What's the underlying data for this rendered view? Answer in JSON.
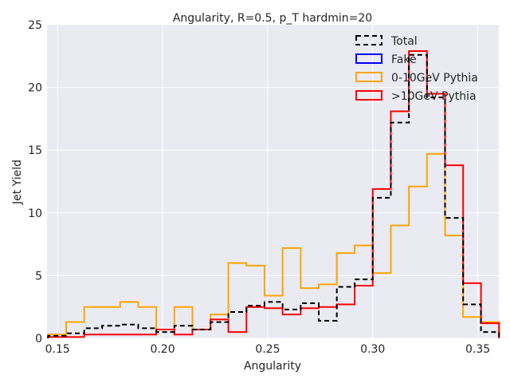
{
  "chart_data": {
    "type": "line",
    "title": "Angularity, R=0.5, p_T hardmin=20",
    "xlabel": "Angularity",
    "ylabel": "Jet Yield",
    "xlim": [
      0.145,
      0.36
    ],
    "ylim": [
      0,
      25
    ],
    "xticks": [
      0.15,
      0.2,
      0.25,
      0.3,
      0.35
    ],
    "xtick_labels": [
      "0.15",
      "0.20",
      "0.25",
      "0.30",
      "0.35"
    ],
    "yticks": [
      0,
      5,
      10,
      15,
      20,
      25
    ],
    "ytick_labels": [
      "0",
      "5",
      "10",
      "15",
      "20",
      "25"
    ],
    "grid": true,
    "legend_position": "top-right",
    "bin_edges": [
      0.1455,
      0.1541,
      0.1627,
      0.1712,
      0.1798,
      0.1884,
      0.197,
      0.2056,
      0.2142,
      0.2228,
      0.2313,
      0.2399,
      0.2485,
      0.2571,
      0.2657,
      0.2743,
      0.2829,
      0.2914,
      0.3,
      0.3086,
      0.3172,
      0.3258,
      0.3344,
      0.343,
      0.3515,
      0.3601
    ],
    "series": [
      {
        "name": "Total",
        "color": "#000000",
        "style": "dashed",
        "values": [
          0.2,
          0.4,
          0.8,
          1.0,
          1.1,
          0.8,
          0.5,
          1.0,
          0.7,
          1.3,
          2.1,
          2.6,
          2.9,
          2.3,
          2.8,
          1.4,
          4.1,
          4.7,
          11.2,
          17.2,
          22.6,
          19.2,
          9.6,
          2.7,
          0.5
        ]
      },
      {
        "name": "Fake",
        "color": "#0000ff",
        "style": "solid",
        "values": []
      },
      {
        "name": "0-10GeV Pythia",
        "color": "#ffa500",
        "style": "solid",
        "values": [
          0.3,
          1.3,
          2.5,
          2.5,
          2.9,
          2.5,
          0.7,
          2.5,
          0.7,
          1.9,
          6.0,
          5.8,
          3.4,
          7.2,
          4.0,
          4.3,
          6.8,
          7.4,
          5.2,
          9.0,
          12.1,
          14.7,
          8.2,
          1.7,
          1.3
        ]
      },
      {
        "name": ">10GeV Pythia",
        "color": "#ff0000",
        "style": "solid",
        "values": [
          0.1,
          0.1,
          0.3,
          0.3,
          0.3,
          0.3,
          0.7,
          0.3,
          0.7,
          1.5,
          0.5,
          2.5,
          2.4,
          1.9,
          2.4,
          2.5,
          2.7,
          4.2,
          11.9,
          18.1,
          22.9,
          19.5,
          13.8,
          4.4,
          1.2
        ]
      }
    ]
  }
}
